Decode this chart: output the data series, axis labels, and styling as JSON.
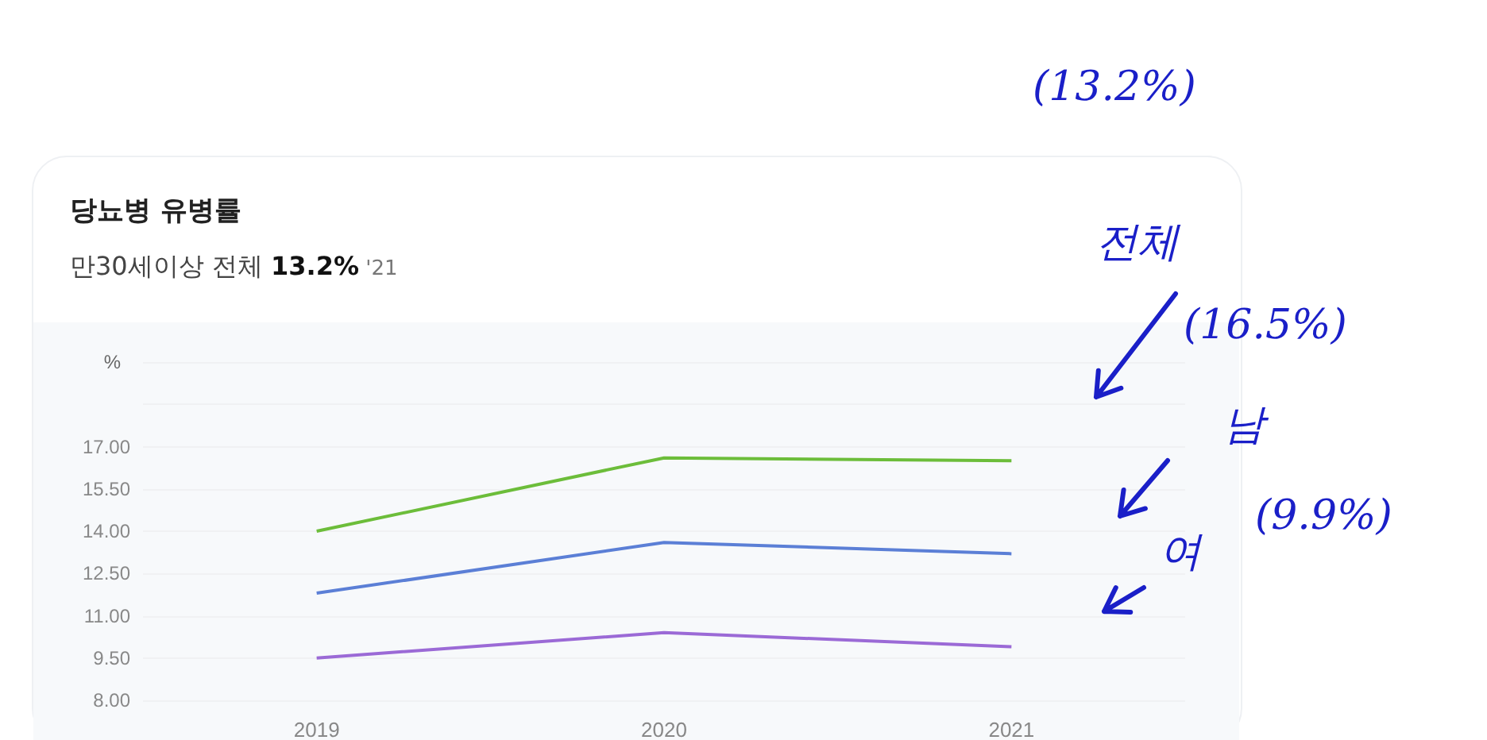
{
  "chart_data": {
    "type": "line",
    "title": "당뇨병 유병률",
    "subtitle": "만30세이상 전체 13.2% '21",
    "ylabel": "%",
    "categories": [
      "2019",
      "2020",
      "2021"
    ],
    "series": [
      {
        "color": "#6cbd3a",
        "values": [
          14.0,
          16.6,
          16.5
        ]
      },
      {
        "color": "#5b7fd6",
        "values": [
          11.8,
          13.6,
          13.2
        ]
      },
      {
        "color": "#9b6ad6",
        "values": [
          9.5,
          10.4,
          9.9
        ]
      }
    ],
    "ylim": [
      8,
      20
    ],
    "yticks": [
      {
        "value": 8,
        "label": "8.00"
      },
      {
        "value": 9.5,
        "label": "9.50"
      },
      {
        "value": 11,
        "label": "11.00"
      },
      {
        "value": 12.5,
        "label": "12.50"
      },
      {
        "value": 14,
        "label": "14.00"
      },
      {
        "value": 15.5,
        "label": "15.50"
      },
      {
        "value": 17,
        "label": "17.00"
      },
      {
        "value": 18.5,
        "label": null
      },
      {
        "value": 20,
        "label": null
      }
    ],
    "grid": "y",
    "marker": "none",
    "line_style": "solid",
    "annotations": [
      "(13.2%)",
      "전체",
      "(16.5%)",
      "남",
      "여",
      "(9.9%)"
    ]
  }
}
